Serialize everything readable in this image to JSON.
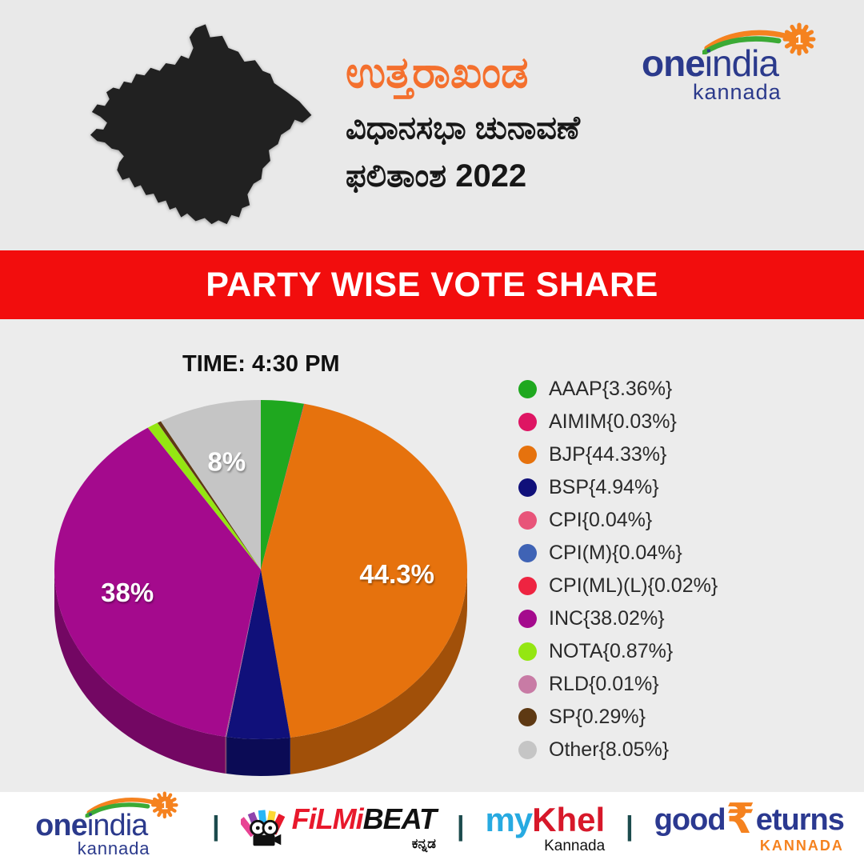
{
  "colors": {
    "banner_red": "#F20D0D",
    "title_orange": "#F4702E",
    "brand_navy": "#2B3A8C",
    "brand_orange": "#F5821F",
    "brand_green": "#3BAA35",
    "map_silhouette": "#212121",
    "header_bg": "#E9E9E9",
    "chart_bg": "#ECECEC"
  },
  "header": {
    "state_title": "ಉತ್ತರಾಖಂಡ",
    "subtitle_line1": "ವಿಧಾನಸಭಾ ಚುನಾವಣೆ",
    "subtitle_line2": "ಫಲಿತಾಂಶ 2022"
  },
  "brand": {
    "one": "one",
    "india": "india",
    "region": "kannada",
    "badge": "1"
  },
  "banner": {
    "label": "PARTY WISE VOTE SHARE"
  },
  "main": {
    "time_label": "TIME: 4:30 PM"
  },
  "chart_data": {
    "type": "pie",
    "style": "3d",
    "title": "PARTY WISE VOTE SHARE",
    "time": "4:30 PM",
    "start_angle_deg": 0,
    "direction": "clockwise",
    "legend_position": "right",
    "label_format": "Name{Value%}",
    "slices": [
      {
        "name": "AAAP",
        "value": 3.36,
        "color": "#1FA81F",
        "pie_label": ""
      },
      {
        "name": "AIMIM",
        "value": 0.03,
        "color": "#DE1563",
        "pie_label": ""
      },
      {
        "name": "BJP",
        "value": 44.33,
        "color": "#E6720D",
        "pie_label": "44.3%"
      },
      {
        "name": "BSP",
        "value": 4.94,
        "color": "#10107A",
        "pie_label": ""
      },
      {
        "name": "CPI",
        "value": 0.04,
        "color": "#E85479",
        "pie_label": ""
      },
      {
        "name": "CPI(M)",
        "value": 0.04,
        "color": "#3F63B5",
        "pie_label": ""
      },
      {
        "name": "CPI(ML)(L)",
        "value": 0.02,
        "color": "#EE2441",
        "pie_label": ""
      },
      {
        "name": "INC",
        "value": 38.02,
        "color": "#A40A8D",
        "pie_label": "38%"
      },
      {
        "name": "NOTA",
        "value": 0.87,
        "color": "#94E612",
        "pie_label": ""
      },
      {
        "name": "RLD",
        "value": 0.01,
        "color": "#C87BA5",
        "pie_label": ""
      },
      {
        "name": "SP",
        "value": 0.29,
        "color": "#5E3913",
        "pie_label": ""
      },
      {
        "name": "Other",
        "value": 8.05,
        "color": "#C5C5C5",
        "pie_label": "8%"
      }
    ]
  },
  "footer": {
    "separator": "|",
    "filmibeat": {
      "filmi": "FiLMi",
      "beat": "BEAT",
      "lang": "ಕನ್ನಡ"
    },
    "mykhel": {
      "my": "my",
      "khel": "Khel",
      "lang": "Kannada"
    },
    "goodreturns": {
      "good": "good",
      "rupee": "₹",
      "eturns": "eturns",
      "lang": "KANNADA"
    }
  }
}
